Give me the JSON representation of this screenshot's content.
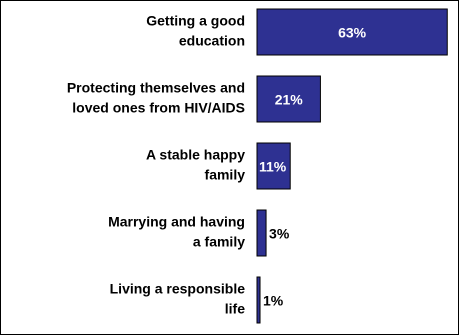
{
  "chart_data": {
    "type": "bar",
    "orientation": "horizontal",
    "categories": [
      [
        "Getting a good",
        "education"
      ],
      [
        "Protecting themselves and",
        "loved ones from HIV/AIDS"
      ],
      [
        "A stable happy",
        "family"
      ],
      [
        "Marrying and having",
        "a family"
      ],
      [
        "Living a responsible",
        "life"
      ]
    ],
    "values": [
      63,
      21,
      11,
      3,
      1
    ],
    "value_labels": [
      "63%",
      "21%",
      "11%",
      "3%",
      "1%"
    ],
    "xlim": [
      0,
      100
    ],
    "bar_color": "#2E3192",
    "bar_edge_color": "#000000",
    "grid": false,
    "legend": "none"
  }
}
